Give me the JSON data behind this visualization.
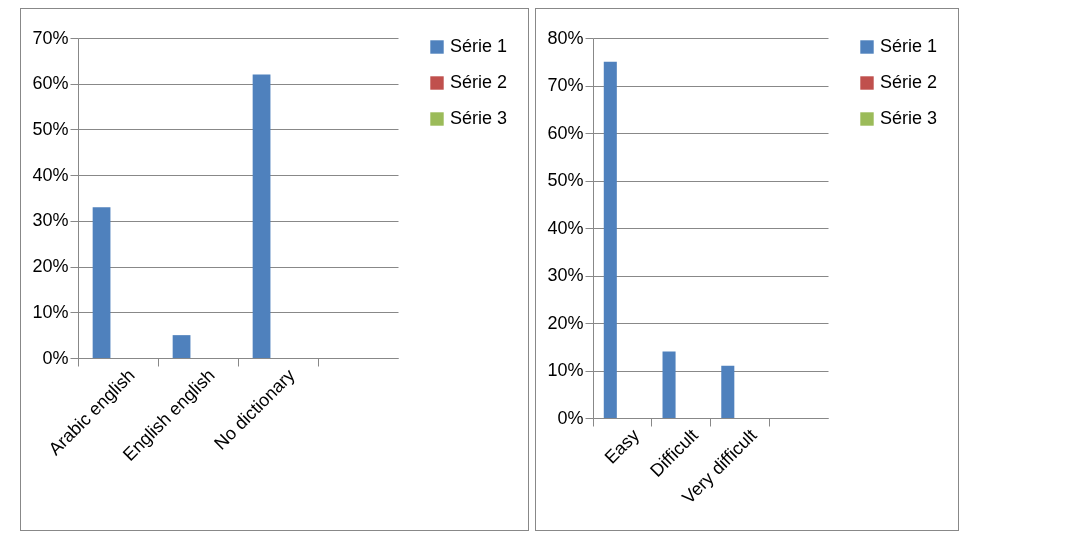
{
  "chart_data": [
    {
      "type": "bar",
      "categories": [
        "Arabic english",
        "English english",
        "No dictionary",
        null
      ],
      "series": [
        {
          "name": "Série 1",
          "color": "#4f81bd",
          "values": [
            33,
            5,
            62,
            null
          ]
        },
        {
          "name": "Série 2",
          "color": "#c0504d",
          "values": [
            null,
            null,
            null,
            null
          ]
        },
        {
          "name": "Série 3",
          "color": "#9bbb59",
          "values": [
            null,
            null,
            null,
            null
          ]
        }
      ],
      "ylim": [
        0,
        70
      ],
      "yticks": [
        {
          "value": 0,
          "label": "0%"
        },
        {
          "value": 10,
          "label": "10%"
        },
        {
          "value": 20,
          "label": "20%"
        },
        {
          "value": 30,
          "label": "30%"
        },
        {
          "value": 40,
          "label": "40%"
        },
        {
          "value": 50,
          "label": "50%"
        },
        {
          "value": 60,
          "label": "60%"
        },
        {
          "value": 70,
          "label": "70%"
        }
      ],
      "grid": "y",
      "legend": "right"
    },
    {
      "type": "bar",
      "categories": [
        "Easy",
        "Difficult",
        "Very difficult",
        null
      ],
      "series": [
        {
          "name": "Série 1",
          "color": "#4f81bd",
          "values": [
            75,
            14,
            11,
            null
          ]
        },
        {
          "name": "Série 2",
          "color": "#c0504d",
          "values": [
            null,
            null,
            null,
            null
          ]
        },
        {
          "name": "Série 3",
          "color": "#9bbb59",
          "values": [
            null,
            null,
            null,
            null
          ]
        }
      ],
      "ylim": [
        0,
        80
      ],
      "yticks": [
        {
          "value": 0,
          "label": "0%"
        },
        {
          "value": 10,
          "label": "10%"
        },
        {
          "value": 20,
          "label": "20%"
        },
        {
          "value": 30,
          "label": "30%"
        },
        {
          "value": 40,
          "label": "40%"
        },
        {
          "value": 50,
          "label": "50%"
        },
        {
          "value": 60,
          "label": "60%"
        },
        {
          "value": 70,
          "label": "70%"
        },
        {
          "value": 80,
          "label": "80%"
        }
      ],
      "grid": "y",
      "legend": "right"
    }
  ]
}
